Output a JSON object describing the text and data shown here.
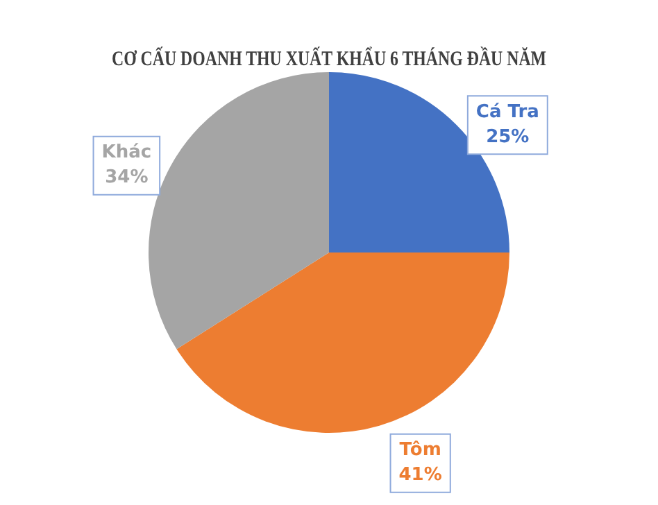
{
  "chart_data": {
    "type": "pie",
    "title": "CƠ CẤU DOANH THU XUẤT KHẨU 6 THÁNG ĐẦU NĂM",
    "categories": [
      "Cá Tra",
      "Tôm",
      "Khác"
    ],
    "values": [
      25,
      41,
      34
    ],
    "value_labels": [
      "25%",
      "41%",
      "34%"
    ],
    "colors": [
      "#4472c4",
      "#ed7d31",
      "#a5a5a5"
    ],
    "legend": false
  }
}
